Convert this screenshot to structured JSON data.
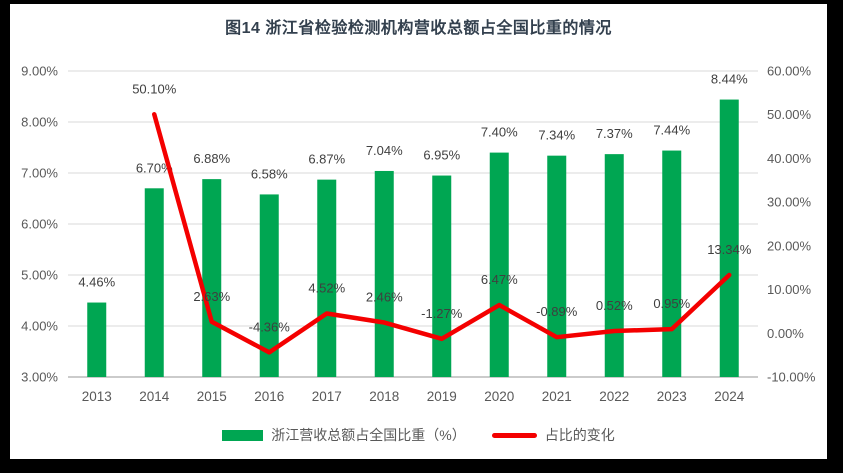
{
  "title": "图14  浙江省检验检测机构营收总额占全国比重的情况",
  "legend": {
    "bar_label": "浙江营收总额占全国比重（%）",
    "line_label": "占比的变化"
  },
  "colors": {
    "frame": "#000000",
    "panel": "#ffffff",
    "title_text": "#33404E",
    "axis_text": "#595959",
    "data_label_text": "#3F3F3F",
    "gridline": "#D9D9D9",
    "axis_line": "#ACACAC",
    "bar_green": "#00A652",
    "line_red": "#F40000"
  },
  "chart_data": {
    "type": "bar",
    "subtype": "combo-bar-line-dual-axis",
    "title": "图14  浙江省检验检测机构营收总额占全国比重的情况",
    "categories": [
      "2013",
      "2014",
      "2015",
      "2016",
      "2017",
      "2018",
      "2019",
      "2020",
      "2021",
      "2022",
      "2023",
      "2024"
    ],
    "series": [
      {
        "name": "浙江营收总额占全国比重（%）",
        "type": "bar",
        "axis": "left",
        "color": "#00A652",
        "values": [
          4.46,
          6.7,
          6.88,
          6.58,
          6.87,
          7.04,
          6.95,
          7.4,
          7.34,
          7.37,
          7.44,
          8.44
        ]
      },
      {
        "name": "占比的变化",
        "type": "line",
        "axis": "right",
        "color": "#F40000",
        "values": [
          null,
          50.1,
          2.63,
          -4.36,
          4.52,
          2.46,
          -1.27,
          6.47,
          -0.89,
          0.52,
          0.95,
          13.34
        ]
      }
    ],
    "left_axis": {
      "min": 3,
      "max": 9,
      "tick_labels": [
        "9.00%",
        "8.00%",
        "7.00%",
        "6.00%",
        "5.00%",
        "4.00%",
        "3.00%"
      ]
    },
    "right_axis": {
      "min": -10,
      "max": 60,
      "tick_labels": [
        "60.00%",
        "50.00%",
        "40.00%",
        "30.00%",
        "20.00%",
        "10.00%",
        "0.00%",
        "-10.00%"
      ]
    },
    "grid": true,
    "legend_position": "bottom",
    "data_labels": true
  }
}
